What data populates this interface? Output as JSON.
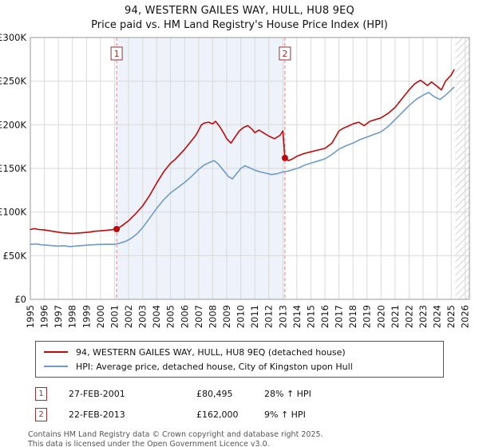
{
  "header": {
    "title": "94, WESTERN GAILES WAY, HULL, HU8 9EQ",
    "subtitle": "Price paid vs. HM Land Registry's House Price Index (HPI)"
  },
  "chart_data": {
    "type": "line",
    "x_range": [
      1995,
      2026.3
    ],
    "y_range": [
      0,
      300000
    ],
    "x_ticks": [
      1995,
      1996,
      1997,
      1998,
      1999,
      2000,
      2001,
      2002,
      2003,
      2004,
      2005,
      2006,
      2007,
      2008,
      2009,
      2010,
      2011,
      2012,
      2013,
      2014,
      2015,
      2016,
      2017,
      2018,
      2019,
      2020,
      2021,
      2022,
      2023,
      2024,
      2025,
      2026
    ],
    "y_ticks": [
      [
        0,
        "£0"
      ],
      [
        50000,
        "£50K"
      ],
      [
        100000,
        "£100K"
      ],
      [
        150000,
        "£150K"
      ],
      [
        200000,
        "£200K"
      ],
      [
        250000,
        "£250K"
      ],
      [
        300000,
        "£300K"
      ]
    ],
    "grid": true,
    "legend_position": "bottom",
    "colors": {
      "property": "#c00a0a",
      "hpi": "#6e9bc8",
      "dashed": "#e08585",
      "shade": "#edf2fb",
      "hatch": "#b4b8be",
      "grid": "#d9d9d9",
      "border": "#999999",
      "marker_box": "#993333"
    },
    "series": [
      {
        "name": "94, WESTERN GAILES WAY, HULL, HU8 9EQ (detached house)",
        "color_key": "property",
        "points": [
          [
            1995.0,
            80000
          ],
          [
            1995.3,
            81000
          ],
          [
            1995.6,
            80000
          ],
          [
            1996.0,
            79500
          ],
          [
            1996.4,
            78500
          ],
          [
            1996.8,
            77500
          ],
          [
            1997.2,
            76500
          ],
          [
            1997.6,
            76000
          ],
          [
            1998.0,
            75500
          ],
          [
            1998.4,
            76000
          ],
          [
            1998.8,
            76500
          ],
          [
            1999.2,
            77000
          ],
          [
            1999.6,
            78000
          ],
          [
            2000.0,
            78500
          ],
          [
            2000.4,
            79000
          ],
          [
            2000.8,
            79800
          ],
          [
            2001.15,
            80495
          ],
          [
            2001.5,
            84000
          ],
          [
            2002.0,
            90000
          ],
          [
            2002.5,
            98000
          ],
          [
            2003.0,
            107000
          ],
          [
            2003.5,
            119000
          ],
          [
            2004.0,
            133000
          ],
          [
            2004.5,
            146000
          ],
          [
            2005.0,
            156000
          ],
          [
            2005.3,
            160000
          ],
          [
            2005.6,
            165000
          ],
          [
            2006.0,
            172000
          ],
          [
            2006.4,
            180000
          ],
          [
            2006.8,
            188000
          ],
          [
            2007.0,
            194000
          ],
          [
            2007.2,
            200000
          ],
          [
            2007.4,
            202000
          ],
          [
            2007.7,
            203000
          ],
          [
            2008.0,
            201000
          ],
          [
            2008.2,
            204000
          ],
          [
            2008.5,
            198000
          ],
          [
            2008.8,
            190000
          ],
          [
            2009.0,
            184000
          ],
          [
            2009.3,
            179000
          ],
          [
            2009.6,
            186000
          ],
          [
            2009.9,
            193000
          ],
          [
            2010.2,
            197000
          ],
          [
            2010.5,
            199000
          ],
          [
            2010.8,
            195000
          ],
          [
            2011.0,
            191000
          ],
          [
            2011.3,
            194000
          ],
          [
            2011.6,
            191000
          ],
          [
            2012.0,
            187000
          ],
          [
            2012.4,
            184000
          ],
          [
            2012.8,
            188000
          ],
          [
            2013.0,
            193000
          ],
          [
            2013.15,
            162000
          ],
          [
            2013.4,
            159000
          ],
          [
            2013.7,
            161000
          ],
          [
            2014.0,
            164000
          ],
          [
            2014.5,
            167000
          ],
          [
            2015.0,
            169000
          ],
          [
            2015.5,
            171000
          ],
          [
            2016.0,
            173000
          ],
          [
            2016.5,
            179000
          ],
          [
            2017.0,
            193000
          ],
          [
            2017.3,
            196000
          ],
          [
            2017.6,
            198000
          ],
          [
            2018.0,
            201000
          ],
          [
            2018.4,
            203000
          ],
          [
            2018.8,
            199000
          ],
          [
            2019.2,
            204000
          ],
          [
            2019.6,
            206000
          ],
          [
            2020.0,
            208000
          ],
          [
            2020.5,
            213000
          ],
          [
            2021.0,
            220000
          ],
          [
            2021.5,
            230000
          ],
          [
            2022.0,
            240000
          ],
          [
            2022.4,
            247000
          ],
          [
            2022.8,
            251000
          ],
          [
            2023.0,
            249000
          ],
          [
            2023.3,
            245000
          ],
          [
            2023.6,
            249000
          ],
          [
            2024.0,
            244000
          ],
          [
            2024.3,
            240000
          ],
          [
            2024.6,
            250000
          ],
          [
            2025.0,
            257000
          ],
          [
            2025.2,
            263000
          ]
        ]
      },
      {
        "name": "HPI: Average price, detached house, City of Kingston upon Hull",
        "color_key": "hpi",
        "points": [
          [
            1995.0,
            63000
          ],
          [
            1995.4,
            63500
          ],
          [
            1995.8,
            62500
          ],
          [
            1996.2,
            62000
          ],
          [
            1996.6,
            61500
          ],
          [
            1997.0,
            61000
          ],
          [
            1997.4,
            61500
          ],
          [
            1997.8,
            60500
          ],
          [
            1998.2,
            61000
          ],
          [
            1998.6,
            61500
          ],
          [
            1999.0,
            62000
          ],
          [
            1999.4,
            62500
          ],
          [
            1999.8,
            62800
          ],
          [
            2000.2,
            63000
          ],
          [
            2000.6,
            63200
          ],
          [
            2001.0,
            63000
          ],
          [
            2001.4,
            64500
          ],
          [
            2001.8,
            66500
          ],
          [
            2002.2,
            70000
          ],
          [
            2002.6,
            75000
          ],
          [
            2003.0,
            82000
          ],
          [
            2003.5,
            93000
          ],
          [
            2004.0,
            104000
          ],
          [
            2004.5,
            114000
          ],
          [
            2005.0,
            122000
          ],
          [
            2005.5,
            128000
          ],
          [
            2006.0,
            134000
          ],
          [
            2006.5,
            141000
          ],
          [
            2007.0,
            149000
          ],
          [
            2007.4,
            154000
          ],
          [
            2007.8,
            157000
          ],
          [
            2008.1,
            159000
          ],
          [
            2008.4,
            155000
          ],
          [
            2008.8,
            147000
          ],
          [
            2009.1,
            141000
          ],
          [
            2009.4,
            138000
          ],
          [
            2009.7,
            144000
          ],
          [
            2010.0,
            150000
          ],
          [
            2010.3,
            153000
          ],
          [
            2010.6,
            151000
          ],
          [
            2011.0,
            148000
          ],
          [
            2011.4,
            146000
          ],
          [
            2011.8,
            144500
          ],
          [
            2012.2,
            143000
          ],
          [
            2012.6,
            144000
          ],
          [
            2013.0,
            146000
          ],
          [
            2013.4,
            147000
          ],
          [
            2013.8,
            149000
          ],
          [
            2014.2,
            151000
          ],
          [
            2014.6,
            154000
          ],
          [
            2015.0,
            156000
          ],
          [
            2015.5,
            158500
          ],
          [
            2016.0,
            161000
          ],
          [
            2016.5,
            166000
          ],
          [
            2017.0,
            172000
          ],
          [
            2017.5,
            176000
          ],
          [
            2018.0,
            179000
          ],
          [
            2018.5,
            183000
          ],
          [
            2019.0,
            186000
          ],
          [
            2019.5,
            189000
          ],
          [
            2020.0,
            192000
          ],
          [
            2020.5,
            198000
          ],
          [
            2021.0,
            206000
          ],
          [
            2021.5,
            214000
          ],
          [
            2022.0,
            222000
          ],
          [
            2022.5,
            229000
          ],
          [
            2023.0,
            234000
          ],
          [
            2023.4,
            237000
          ],
          [
            2023.8,
            232000
          ],
          [
            2024.2,
            229000
          ],
          [
            2024.6,
            234000
          ],
          [
            2025.0,
            240000
          ],
          [
            2025.2,
            243000
          ]
        ]
      }
    ],
    "sale_markers": [
      {
        "label": "1",
        "x": 2001.15,
        "y": 80495
      },
      {
        "label": "2",
        "x": 2013.15,
        "y": 162000
      }
    ],
    "shaded_region": [
      2001.15,
      2013.15
    ],
    "hatched_region": [
      2025.3,
      2026.3
    ]
  },
  "legend": {
    "items": [
      {
        "label": "94, WESTERN GAILES WAY, HULL, HU8 9EQ (detached house)"
      },
      {
        "label": "HPI: Average price, detached house, City of Kingston upon Hull"
      }
    ]
  },
  "annotations": [
    {
      "num": "1",
      "date": "27-FEB-2001",
      "price": "£80,495",
      "hpi": "28% ↑ HPI"
    },
    {
      "num": "2",
      "date": "22-FEB-2013",
      "price": "£162,000",
      "hpi": "9% ↑ HPI"
    }
  ],
  "footer": {
    "line1": "Contains HM Land Registry data © Crown copyright and database right 2025.",
    "line2": "This data is licensed under the Open Government Licence v3.0."
  }
}
